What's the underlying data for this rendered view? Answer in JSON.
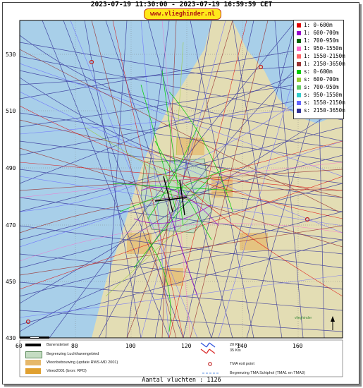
{
  "header": {
    "time_range": "2023-07-19 11:30:00 - 2023-07-19 16:59:59 CET",
    "brand": "www.vlieghinder.nl"
  },
  "map": {
    "land_color": "#e3ddb4",
    "water_color": "#a8cfe9",
    "airport_color": "#c4dcc2",
    "urban_color": "#e6b86a",
    "y_ticks": [
      "530",
      "510",
      "490",
      "470",
      "450",
      "430"
    ],
    "x_ticks": [
      "60",
      "80",
      "100",
      "120",
      "140",
      "160"
    ],
    "tma_exit_color": "#c22222",
    "credit": "vlieghinder"
  },
  "legend": {
    "items": [
      {
        "label": "1: 0-600m",
        "color": "#e00000"
      },
      {
        "label": "1: 600-700m",
        "color": "#9900cc"
      },
      {
        "label": "1: 700-950m",
        "color": "#006600"
      },
      {
        "label": "1: 950-1550m",
        "color": "#ff66cc"
      },
      {
        "label": "1: 1550-2150m",
        "color": "#ff6666"
      },
      {
        "label": "1: 2150-3650m",
        "color": "#993333"
      },
      {
        "label": "s: 0-600m",
        "color": "#00cc00"
      },
      {
        "label": "s: 600-700m",
        "color": "#99cc33"
      },
      {
        "label": "s: 700-950m",
        "color": "#66cc66"
      },
      {
        "label": "s: 950-1550m",
        "color": "#33cccc"
      },
      {
        "label": "s: 1550-2150m",
        "color": "#6666ff"
      },
      {
        "label": "s: 2150-3650m",
        "color": "#333399"
      }
    ]
  },
  "key": {
    "runway": "Banenstelsel",
    "airport_boundary": "Begrenzing Luchthavengebied",
    "housing": "Woonbebouwing (update RWS-MD 2001)",
    "vinex": "Vinex2001 (bron: RPD)",
    "wind_a": "20 Kts",
    "wind_b": "35 Kts",
    "tma_exit": "TMA exit point",
    "tma_boundary": "Begrenzing TMA Schiphol  (TMA1 en TMA3)"
  },
  "footer": {
    "flight_count": "Aantal vluchten : 1126"
  }
}
